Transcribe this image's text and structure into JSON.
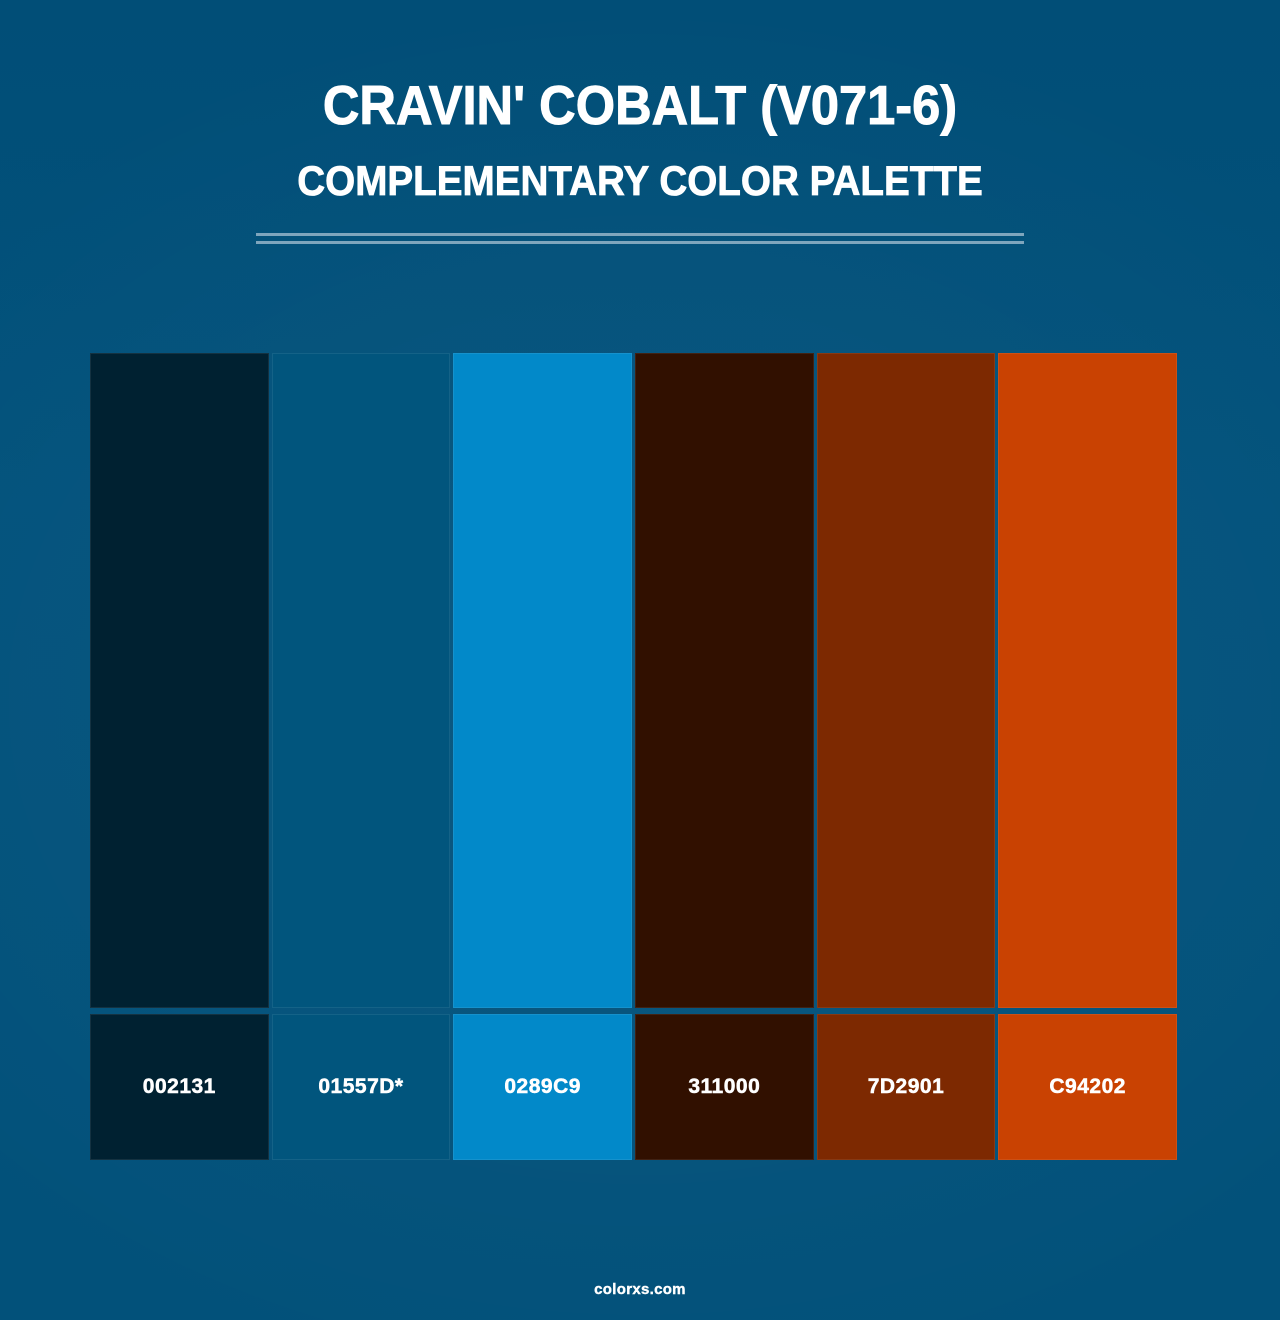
{
  "header": {
    "title": "CRAVIN' COBALT (V071-6)",
    "subtitle": "COMPLEMENTARY COLOR PALETTE"
  },
  "palette": {
    "swatches": [
      {
        "hex_label": "002131",
        "color": "#002131"
      },
      {
        "hex_label": "01557D*",
        "color": "#01557D"
      },
      {
        "hex_label": "0289C9",
        "color": "#0289C9"
      },
      {
        "hex_label": "311000",
        "color": "#311000"
      },
      {
        "hex_label": "7D2901",
        "color": "#7D2901"
      },
      {
        "hex_label": "C94202",
        "color": "#C94202"
      }
    ]
  },
  "footer": {
    "site": "colorxs.com"
  },
  "colors": {
    "background": "#01557D",
    "text": "#FFFFFF",
    "divider": "#7FA6BD"
  }
}
